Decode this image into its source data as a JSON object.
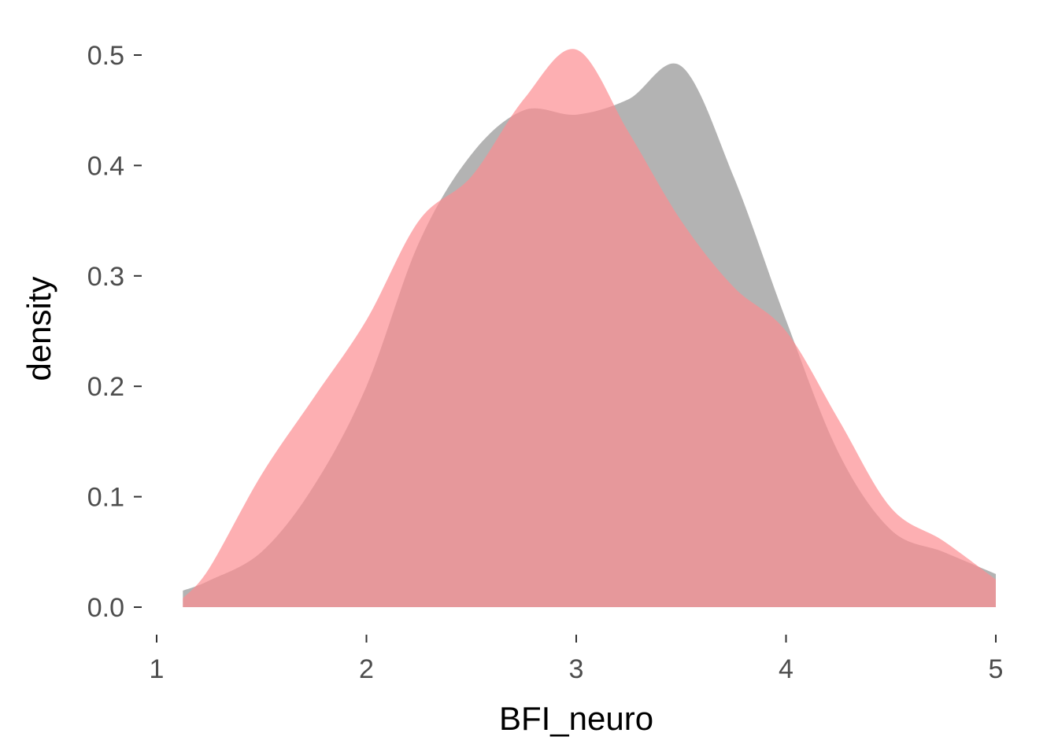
{
  "chart_data": {
    "type": "area",
    "title": "",
    "xlabel": "BFI_neuro",
    "ylabel": "density",
    "xlim": [
      1,
      5
    ],
    "ylim": [
      0,
      0.5
    ],
    "x_ticks": [
      1,
      2,
      3,
      4,
      5
    ],
    "x_tick_labels": [
      "1",
      "2",
      "3",
      "4",
      "5"
    ],
    "y_ticks": [
      0,
      0.1,
      0.2,
      0.3,
      0.4,
      0.5
    ],
    "y_tick_labels": [
      "0.0",
      "0.1",
      "0.2",
      "0.3",
      "0.4",
      "0.5"
    ],
    "grid": false,
    "legend": "none",
    "series": [
      {
        "color": "#999999",
        "opacity": 0.75,
        "x": [
          1.125,
          1.25,
          1.5,
          1.75,
          2.0,
          2.25,
          2.5,
          2.75,
          3.0,
          3.25,
          3.5,
          3.75,
          4.0,
          4.25,
          4.5,
          4.75,
          5.0
        ],
        "y": [
          0.015,
          0.024,
          0.05,
          0.11,
          0.2,
          0.33,
          0.41,
          0.45,
          0.446,
          0.46,
          0.49,
          0.39,
          0.26,
          0.14,
          0.07,
          0.05,
          0.03
        ]
      },
      {
        "color": "#fc8d92",
        "opacity": 0.7,
        "x": [
          1.125,
          1.25,
          1.5,
          1.75,
          2.0,
          2.25,
          2.5,
          2.75,
          3.0,
          3.25,
          3.5,
          3.75,
          4.0,
          4.25,
          4.5,
          4.75,
          5.0
        ],
        "y": [
          0.008,
          0.035,
          0.12,
          0.19,
          0.26,
          0.35,
          0.39,
          0.46,
          0.505,
          0.43,
          0.35,
          0.29,
          0.25,
          0.17,
          0.09,
          0.06,
          0.025
        ]
      }
    ]
  }
}
